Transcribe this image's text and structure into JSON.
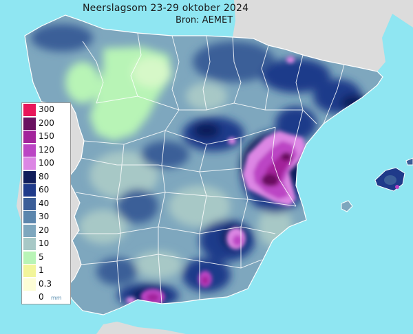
{
  "title": "Neerslagsom  23-29 oktober 2024",
  "source": "Bron: AEMET",
  "legend": {
    "unit": "mm",
    "items": [
      {
        "label": "300",
        "color": "#e8165a"
      },
      {
        "label": "200",
        "color": "#6a1160"
      },
      {
        "label": "150",
        "color": "#a3249b"
      },
      {
        "label": "120",
        "color": "#bb45c4"
      },
      {
        "label": "100",
        "color": "#dc86e4"
      },
      {
        "label": "80",
        "color": "#101c5a"
      },
      {
        "label": "60",
        "color": "#1f3a8a"
      },
      {
        "label": "40",
        "color": "#3b5e98"
      },
      {
        "label": "30",
        "color": "#5c86ad"
      },
      {
        "label": "20",
        "color": "#7ea7be"
      },
      {
        "label": "10",
        "color": "#a7c8c6"
      },
      {
        "label": "5",
        "color": "#b8f4b6"
      },
      {
        "label": "1",
        "color": "#f2f59a"
      },
      {
        "label": "0.3",
        "color": "#fdfdd6"
      },
      {
        "label": "0",
        "color": "#ffffff"
      }
    ]
  },
  "colors": {
    "sea": "#8fe6f2",
    "foreign_land": "#dcdcdc",
    "base_land": "#7ea7be",
    "borders": "#ffffff"
  }
}
